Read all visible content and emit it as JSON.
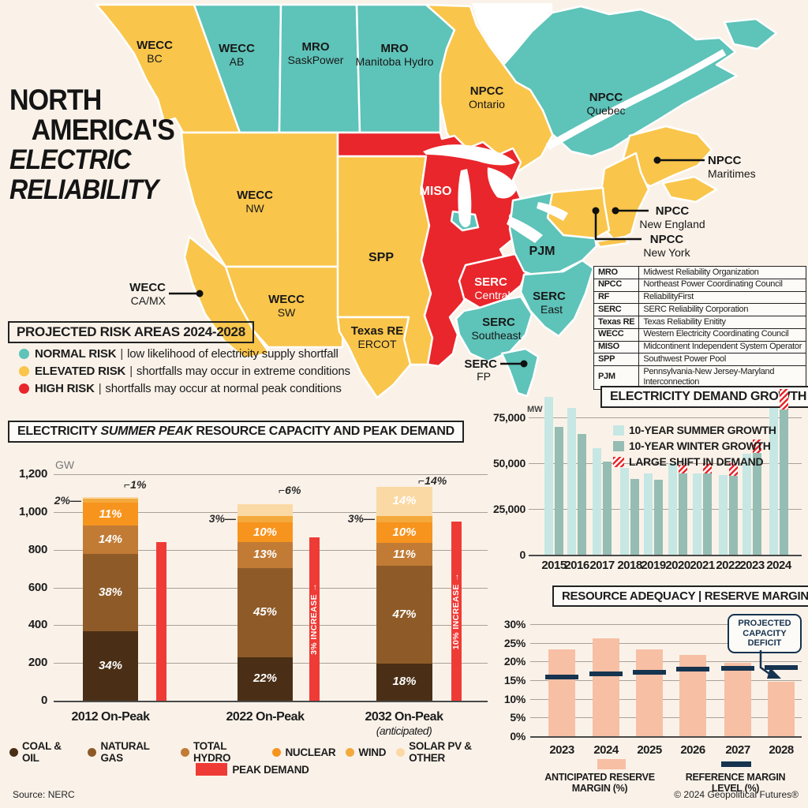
{
  "title": {
    "line1": "NORTH",
    "line2": "AMERICA'S",
    "line3": "ELECTRIC",
    "line4": "RELIABILITY"
  },
  "risk_legend": {
    "title": "PROJECTED RISK AREAS 2024-2028",
    "items": [
      {
        "label": "NORMAL RISK",
        "desc": "low likelihood of electricity supply shortfall",
        "color": "#5EC3B9"
      },
      {
        "label": "ELEVATED RISK",
        "desc": "shortfalls may occur in extreme conditions",
        "color": "#F9C54B"
      },
      {
        "label": "HIGH RISK",
        "desc": "shortfalls may occur at normal peak conditions",
        "color": "#E9262B"
      }
    ]
  },
  "map": {
    "risk_colors": {
      "normal": "#5EC3B9",
      "elevated": "#F9C54B",
      "high": "#E9262B"
    },
    "regions": [
      {
        "id": "wecc-bc",
        "l1": "WECC",
        "l2": "BC",
        "risk": "elevated"
      },
      {
        "id": "wecc-ab",
        "l1": "WECC",
        "l2": "AB",
        "risk": "normal"
      },
      {
        "id": "mro-saskpower",
        "l1": "MRO",
        "l2": "SaskPower",
        "risk": "normal"
      },
      {
        "id": "mro-manitoba-hydro",
        "l1": "MRO",
        "l2": "Manitoba Hydro",
        "risk": "normal"
      },
      {
        "id": "npcc-ontario",
        "l1": "NPCC",
        "l2": "Ontario",
        "risk": "elevated"
      },
      {
        "id": "npcc-quebec",
        "l1": "NPCC",
        "l2": "Quebec",
        "risk": "normal"
      },
      {
        "id": "npcc-maritimes",
        "l1": "NPCC",
        "l2": "Maritimes",
        "risk": "elevated"
      },
      {
        "id": "npcc-new-england",
        "l1": "NPCC",
        "l2": "New England",
        "risk": "elevated"
      },
      {
        "id": "npcc-new-york",
        "l1": "NPCC",
        "l2": "New York",
        "risk": "elevated"
      },
      {
        "id": "wecc-nw",
        "l1": "WECC",
        "l2": "NW",
        "risk": "elevated"
      },
      {
        "id": "wecc-ca-mx",
        "l1": "WECC",
        "l2": "CA/MX",
        "risk": "elevated"
      },
      {
        "id": "wecc-sw",
        "l1": "WECC",
        "l2": "SW",
        "risk": "elevated"
      },
      {
        "id": "spp",
        "l1": "SPP",
        "l2": "",
        "risk": "elevated"
      },
      {
        "id": "miso",
        "l1": "MISO",
        "l2": "",
        "risk": "high"
      },
      {
        "id": "texas-re-ercot",
        "l1": "Texas RE",
        "l2": "ERCOT",
        "risk": "elevated"
      },
      {
        "id": "serc-central",
        "l1": "SERC",
        "l2": "Central",
        "risk": "high"
      },
      {
        "id": "serc-east",
        "l1": "SERC",
        "l2": "East",
        "risk": "normal"
      },
      {
        "id": "serc-southeast",
        "l1": "SERC",
        "l2": "Southeast",
        "risk": "normal"
      },
      {
        "id": "serc-fp",
        "l1": "SERC",
        "l2": "FP",
        "risk": "normal"
      },
      {
        "id": "pjm",
        "l1": "PJM",
        "l2": "",
        "risk": "normal"
      }
    ]
  },
  "abbreviation_table": {
    "rows": [
      [
        "MRO",
        "Midwest Reliability Organization"
      ],
      [
        "NPCC",
        "Northeast Power Coordinating Council"
      ],
      [
        "RF",
        "ReliabilityFirst"
      ],
      [
        "SERC",
        "SERC Reliability Corporation"
      ],
      [
        "Texas RE",
        "Texas Reliability Enitity"
      ],
      [
        "WECC",
        "Western Electricity Coordinating Council"
      ],
      [
        "MISO",
        "Midcontinent Independent System Operator"
      ],
      [
        "SPP",
        "Southwest Power Pool"
      ],
      [
        "PJM",
        "Pennsylvania-New Jersey-Maryland Interconnection"
      ]
    ]
  },
  "chart_data": [
    {
      "type": "bar",
      "stacked": true,
      "title": "ELECTRICITY SUMMER PEAK RESOURCE CAPACITY AND PEAK DEMAND",
      "title_parts": [
        "ELECTRICITY ",
        "SUMMER PEAK",
        " RESOURCE CAPACITY AND PEAK DEMAND"
      ],
      "unit": "GW",
      "ylim": [
        0,
        1200
      ],
      "yticks": [
        "0",
        "200",
        "400",
        "600",
        "800",
        "1,000",
        "1,200"
      ],
      "ytick_values": [
        0,
        200,
        400,
        600,
        800,
        1000,
        1200
      ],
      "categories": [
        "2012 On-Peak",
        "2022 On-Peak",
        "2032 On-Peak"
      ],
      "category_note": "(anticipated)",
      "totals_gw": [
        1080,
        1050,
        1100
      ],
      "series": [
        {
          "name": "COAL & OIL",
          "color": "#4A2F16",
          "pct": [
            34,
            22,
            18
          ]
        },
        {
          "name": "NATURAL GAS",
          "color": "#8E5B28",
          "pct": [
            38,
            45,
            47
          ]
        },
        {
          "name": "TOTAL HYDRO",
          "color": "#C17B35",
          "pct": [
            14,
            13,
            11
          ]
        },
        {
          "name": "NUCLEAR",
          "color": "#F7941E",
          "pct": [
            11,
            10,
            10
          ]
        },
        {
          "name": "WIND",
          "color": "#F4A93C",
          "pct": [
            2,
            3,
            3
          ]
        },
        {
          "name": "SOLAR PV & OTHER",
          "color": "#FBD9A4",
          "pct": [
            1,
            6,
            14
          ]
        }
      ],
      "peak_demand": {
        "name": "PEAK DEMAND",
        "color": "#EF3B36",
        "values_gw": [
          840,
          865,
          950
        ],
        "annotations": [
          "",
          "3% INCREASE",
          "10% INCREASE"
        ]
      }
    },
    {
      "type": "bar",
      "title": "ELECTRICITY DEMAND GROWTH",
      "unit": "MW",
      "ylim": [
        0,
        90000
      ],
      "yticks": [
        "0",
        "25,000",
        "50,000",
        "75,000"
      ],
      "ytick_values": [
        0,
        25000,
        50000,
        75000
      ],
      "categories": [
        "2015",
        "2016",
        "2017",
        "2018",
        "2019",
        "2020",
        "2021",
        "2022",
        "2023",
        "2024"
      ],
      "series": [
        {
          "name": "10-YEAR SUMMER GROWTH",
          "color": "#C6E7E4",
          "values": [
            86000,
            80000,
            58000,
            47500,
            44500,
            50000,
            44500,
            43500,
            55000,
            80000
          ]
        },
        {
          "name": "10-YEAR WINTER GROWTH",
          "color": "#95BDB3",
          "values": [
            70000,
            66000,
            51000,
            41500,
            41000,
            44500,
            44500,
            43000,
            55500,
            79500
          ]
        },
        {
          "name": "LARGE SHIFT IN DEMAND",
          "color": "#E9262B",
          "hatch": true,
          "values": [
            0,
            0,
            0,
            0,
            0,
            4500,
            5500,
            7000,
            7500,
            11000
          ]
        }
      ]
    },
    {
      "type": "bar",
      "title": "RESOURCE ADEQUACY | RESERVE MARGINS",
      "ylim": [
        0,
        30
      ],
      "yticks": [
        "0%",
        "5%",
        "10%",
        "15%",
        "20%",
        "25%",
        "30%"
      ],
      "ytick_values": [
        0,
        5,
        10,
        15,
        20,
        25,
        30
      ],
      "categories": [
        "2023",
        "2024",
        "2025",
        "2026",
        "2027",
        "2028"
      ],
      "series": [
        {
          "name": "ANTICIPATED RESERVE MARGIN (%)",
          "name_lines": [
            "ANTICIPATED RESERVE",
            "MARGIN (%)"
          ],
          "color": "#F7BFA4",
          "values": [
            23.3,
            26.2,
            23.3,
            21.8,
            19.7,
            14.5
          ]
        },
        {
          "name": "REFERENCE MARGIN LEVEL (%)",
          "name_lines": [
            "REFERENCE MARGIN",
            "LEVEL (%)"
          ],
          "color": "#16334F",
          "style": "dash",
          "values": [
            15.8,
            16.7,
            17.2,
            18.0,
            18.2,
            18.4
          ]
        }
      ],
      "annotation": {
        "lines": [
          "PROJECTED",
          "CAPACITY",
          "DEFICIT"
        ]
      }
    }
  ],
  "footer": {
    "source": "Source: NERC",
    "copyright": "© 2024 Geopolitical Futures®"
  }
}
